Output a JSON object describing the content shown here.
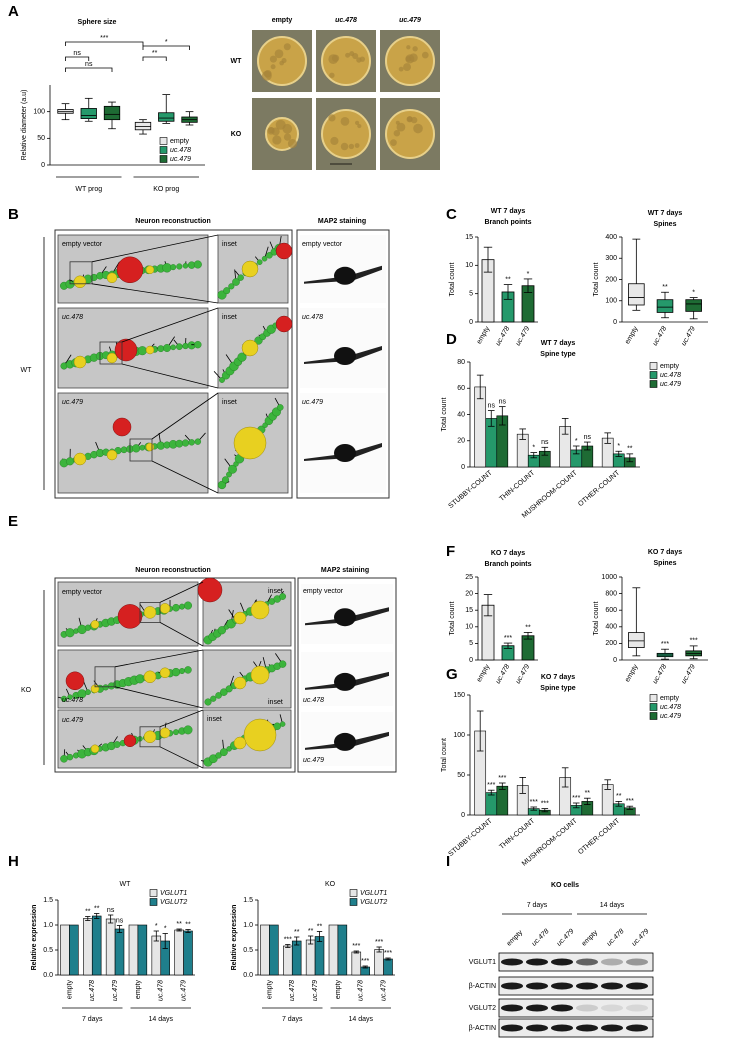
{
  "panel_labels": [
    "A",
    "B",
    "C",
    "D",
    "E",
    "F",
    "G",
    "H",
    "I"
  ],
  "sphere_images": {
    "columns": [
      "empty",
      "uc.478",
      "uc.479"
    ],
    "rows": [
      "WT",
      "KO"
    ]
  },
  "reconstruction_wt": {
    "title": "Neuron reconstruction",
    "map2_title": "MAP2 staining",
    "genotype": "WT",
    "labels": [
      "empty vector",
      "uc.478",
      "uc.479"
    ],
    "inset": "inset",
    "map2_labels": [
      "empty vector",
      "uc.478",
      "uc.479"
    ]
  },
  "reconstruction_ko": {
    "title": "Neuron reconstruction",
    "map2_title": "MAP2 staining",
    "genotype": "KO",
    "labels": [
      "empty vector",
      "uc.478",
      "uc.479"
    ],
    "inset": "inset",
    "map2_labels": [
      "empty vector",
      "uc.478",
      "uc.479"
    ]
  },
  "blot": {
    "title": "KO cells",
    "timepoints": [
      "7 days",
      "14 days"
    ],
    "lanes": [
      "empty",
      "uc.478",
      "uc.479",
      "empty",
      "uc.478",
      "uc.479"
    ],
    "rows": [
      "VGLUT1",
      "β-ACTIN",
      "VGLUT2",
      "β-ACTIN"
    ]
  },
  "chart_data": [
    {
      "type": "box",
      "title": "Sphere size",
      "ylabel": "Relative diameter (a.u)",
      "categories": [
        "WT prog",
        "KO prog"
      ],
      "series": [
        {
          "name": "empty",
          "color": "#e8e8e8",
          "min": [
            85,
            58
          ],
          "q1": [
            97,
            66
          ],
          "median": [
            100,
            72
          ],
          "q3": [
            104,
            80
          ],
          "max": [
            115,
            85
          ]
        },
        {
          "name": "uc.478",
          "color": "#25996b",
          "min": [
            82,
            78
          ],
          "q1": [
            87,
            82
          ],
          "median": [
            93,
            88
          ],
          "q3": [
            106,
            98
          ],
          "max": [
            125,
            132
          ]
        },
        {
          "name": "uc.479",
          "color": "#1e6b34",
          "min": [
            68,
            75
          ],
          "q1": [
            85,
            80
          ],
          "median": [
            95,
            85
          ],
          "q3": [
            110,
            90
          ],
          "max": [
            118,
            100
          ]
        }
      ],
      "ylim": [
        0,
        150
      ],
      "yticks": [
        0,
        50,
        100
      ],
      "annotations": [
        "***",
        "ns",
        "ns",
        "**",
        "*"
      ]
    },
    {
      "type": "bar",
      "title": "WT 7 days",
      "subtitle": "Branch points",
      "ylabel": "Total count",
      "categories": [
        "empty",
        "uc.478",
        "uc.479"
      ],
      "values": [
        11,
        5.3,
        6.4
      ],
      "errors": [
        2.2,
        1.3,
        1.2
      ],
      "colors": [
        "#e8e8e8",
        "#25996b",
        "#1e6b34"
      ],
      "significance": [
        null,
        "**",
        "*"
      ],
      "ylim": [
        0,
        15
      ],
      "yticks": [
        0,
        5,
        10,
        15
      ]
    },
    {
      "type": "box",
      "title": "WT 7 days",
      "subtitle": "Spines",
      "ylabel": "Total count",
      "categories": [
        "empty",
        "uc.478",
        "uc.479"
      ],
      "colors": [
        "#e8e8e8",
        "#25996b",
        "#1e6b34"
      ],
      "min": [
        55,
        20,
        15
      ],
      "q1": [
        80,
        45,
        50
      ],
      "median": [
        115,
        70,
        85
      ],
      "q3": [
        180,
        105,
        105
      ],
      "max": [
        390,
        140,
        115
      ],
      "significance": [
        null,
        "**",
        "*"
      ],
      "ylim": [
        0,
        400
      ],
      "yticks": [
        0,
        100,
        200,
        300,
        400
      ]
    },
    {
      "type": "grouped_bar",
      "title": "WT 7 days",
      "subtitle": "Spine type",
      "ylabel": "Total count",
      "categories": [
        "STUBBY-COUNT",
        "THIN-COUNT",
        "MUSHROOM-COUNT",
        "OTHER-COUNT"
      ],
      "series": [
        {
          "name": "empty",
          "color": "#e8e8e8",
          "values": [
            61,
            25,
            31,
            22
          ],
          "errors": [
            9,
            4,
            6,
            4
          ],
          "significance": [
            null,
            null,
            null,
            null
          ]
        },
        {
          "name": "uc.478",
          "color": "#25996b",
          "values": [
            37,
            9,
            13,
            10
          ],
          "errors": [
            6,
            2,
            3,
            2
          ],
          "significance": [
            "ns",
            "*",
            "*",
            "*"
          ]
        },
        {
          "name": "uc.479",
          "color": "#1e6b34",
          "values": [
            39,
            12,
            16,
            7
          ],
          "errors": [
            7,
            3,
            3,
            3
          ],
          "significance": [
            "ns",
            "ns",
            "ns",
            "**"
          ]
        }
      ],
      "ylim": [
        0,
        80
      ],
      "yticks": [
        0,
        20,
        40,
        60,
        80
      ]
    },
    {
      "type": "bar",
      "title": "KO 7 days",
      "subtitle": "Branch points",
      "ylabel": "Total count",
      "categories": [
        "empty",
        "uc.478",
        "uc.479"
      ],
      "values": [
        16.5,
        4.3,
        7.3
      ],
      "errors": [
        3.2,
        0.8,
        1.0
      ],
      "colors": [
        "#e8e8e8",
        "#25996b",
        "#1e6b34"
      ],
      "significance": [
        null,
        "***",
        "**"
      ],
      "ylim": [
        0,
        25
      ],
      "yticks": [
        0,
        5,
        10,
        15,
        20,
        25
      ]
    },
    {
      "type": "box",
      "title": "KO 7 days",
      "subtitle": "Spines",
      "ylabel": "Total count",
      "categories": [
        "empty",
        "uc.478",
        "uc.479"
      ],
      "colors": [
        "#e8e8e8",
        "#25996b",
        "#1e6b34"
      ],
      "min": [
        50,
        10,
        15
      ],
      "q1": [
        150,
        40,
        50
      ],
      "median": [
        230,
        60,
        80
      ],
      "q3": [
        330,
        80,
        110
      ],
      "max": [
        870,
        130,
        170
      ],
      "significance": [
        null,
        "***",
        "***"
      ],
      "ylim": [
        0,
        1000
      ],
      "yticks": [
        0,
        200,
        400,
        600,
        800,
        1000
      ]
    },
    {
      "type": "grouped_bar",
      "title": "KO 7 days",
      "subtitle": "Spine type",
      "ylabel": "Total count",
      "categories": [
        "STUBBY-COUNT",
        "THIN-COUNT",
        "MUSHROOM-COUNT",
        "OTHER-COUNT"
      ],
      "series": [
        {
          "name": "empty",
          "color": "#e8e8e8",
          "values": [
            105,
            37,
            47,
            38
          ],
          "errors": [
            25,
            10,
            12,
            6
          ],
          "significance": [
            null,
            null,
            null,
            null
          ]
        },
        {
          "name": "uc.478",
          "color": "#25996b",
          "values": [
            28,
            8,
            12,
            14
          ],
          "errors": [
            3,
            2,
            3,
            3
          ],
          "significance": [
            "***",
            "***",
            "***",
            "**"
          ]
        },
        {
          "name": "uc.479",
          "color": "#1e6b34",
          "values": [
            36,
            6,
            17,
            9
          ],
          "errors": [
            4,
            2,
            4,
            2
          ],
          "significance": [
            "***",
            "***",
            "**",
            "***"
          ]
        }
      ],
      "ylim": [
        0,
        150
      ],
      "yticks": [
        0,
        50,
        100,
        150
      ]
    },
    {
      "type": "grouped_bar",
      "title": "WT",
      "ylabel": "Relative expression",
      "categories": [
        "empty",
        "uc.478",
        "uc.479",
        "empty",
        "uc.478",
        "uc.479"
      ],
      "groups": [
        "7 days",
        "14 days"
      ],
      "series": [
        {
          "name": "VGLUT1",
          "color": "#e6e6e6",
          "values": [
            1,
            1.13,
            1.12,
            1,
            0.78,
            0.9
          ],
          "errors": [
            null,
            0.04,
            0.08,
            null,
            0.1,
            0.02
          ],
          "significance": [
            null,
            "**",
            "ns",
            null,
            "*",
            "**"
          ]
        },
        {
          "name": "VGLUT2",
          "color": "#1f7f8c",
          "values": [
            1,
            1.18,
            0.92,
            1,
            0.68,
            0.88
          ],
          "errors": [
            null,
            0.05,
            0.07,
            null,
            0.15,
            0.03
          ],
          "significance": [
            null,
            "**",
            "ns",
            null,
            "*",
            "**"
          ]
        }
      ],
      "ylim": [
        0,
        1.5
      ],
      "yticks": [
        {
          "value": 0,
          "label": "0.0"
        },
        0.5,
        {
          "value": 1,
          "label": "1.0"
        },
        1.5
      ]
    },
    {
      "type": "grouped_bar",
      "title": "KO",
      "ylabel": "Relative expression",
      "categories": [
        "empty",
        "uc.478",
        "uc.479",
        "empty",
        "uc.478",
        "uc.479"
      ],
      "groups": [
        "7 days",
        "14 days"
      ],
      "series": [
        {
          "name": "VGLUT1",
          "color": "#e6e6e6",
          "values": [
            1,
            0.58,
            0.7,
            1,
            0.46,
            0.51
          ],
          "errors": [
            null,
            0.03,
            0.08,
            null,
            0.02,
            0.05
          ],
          "significance": [
            null,
            "***",
            "**",
            null,
            "***",
            "***"
          ]
        },
        {
          "name": "VGLUT2",
          "color": "#1f7f8c",
          "values": [
            1,
            0.68,
            0.77,
            1,
            0.16,
            0.32
          ],
          "errors": [
            null,
            0.08,
            0.1,
            null,
            0.02,
            0.02
          ],
          "significance": [
            null,
            "**",
            "**",
            null,
            "***",
            "***"
          ]
        }
      ],
      "ylim": [
        0,
        1.5
      ],
      "yticks": [
        {
          "value": 0,
          "label": "0.0"
        },
        0.5,
        {
          "value": 1,
          "label": "1.0"
        },
        1.5
      ]
    }
  ]
}
